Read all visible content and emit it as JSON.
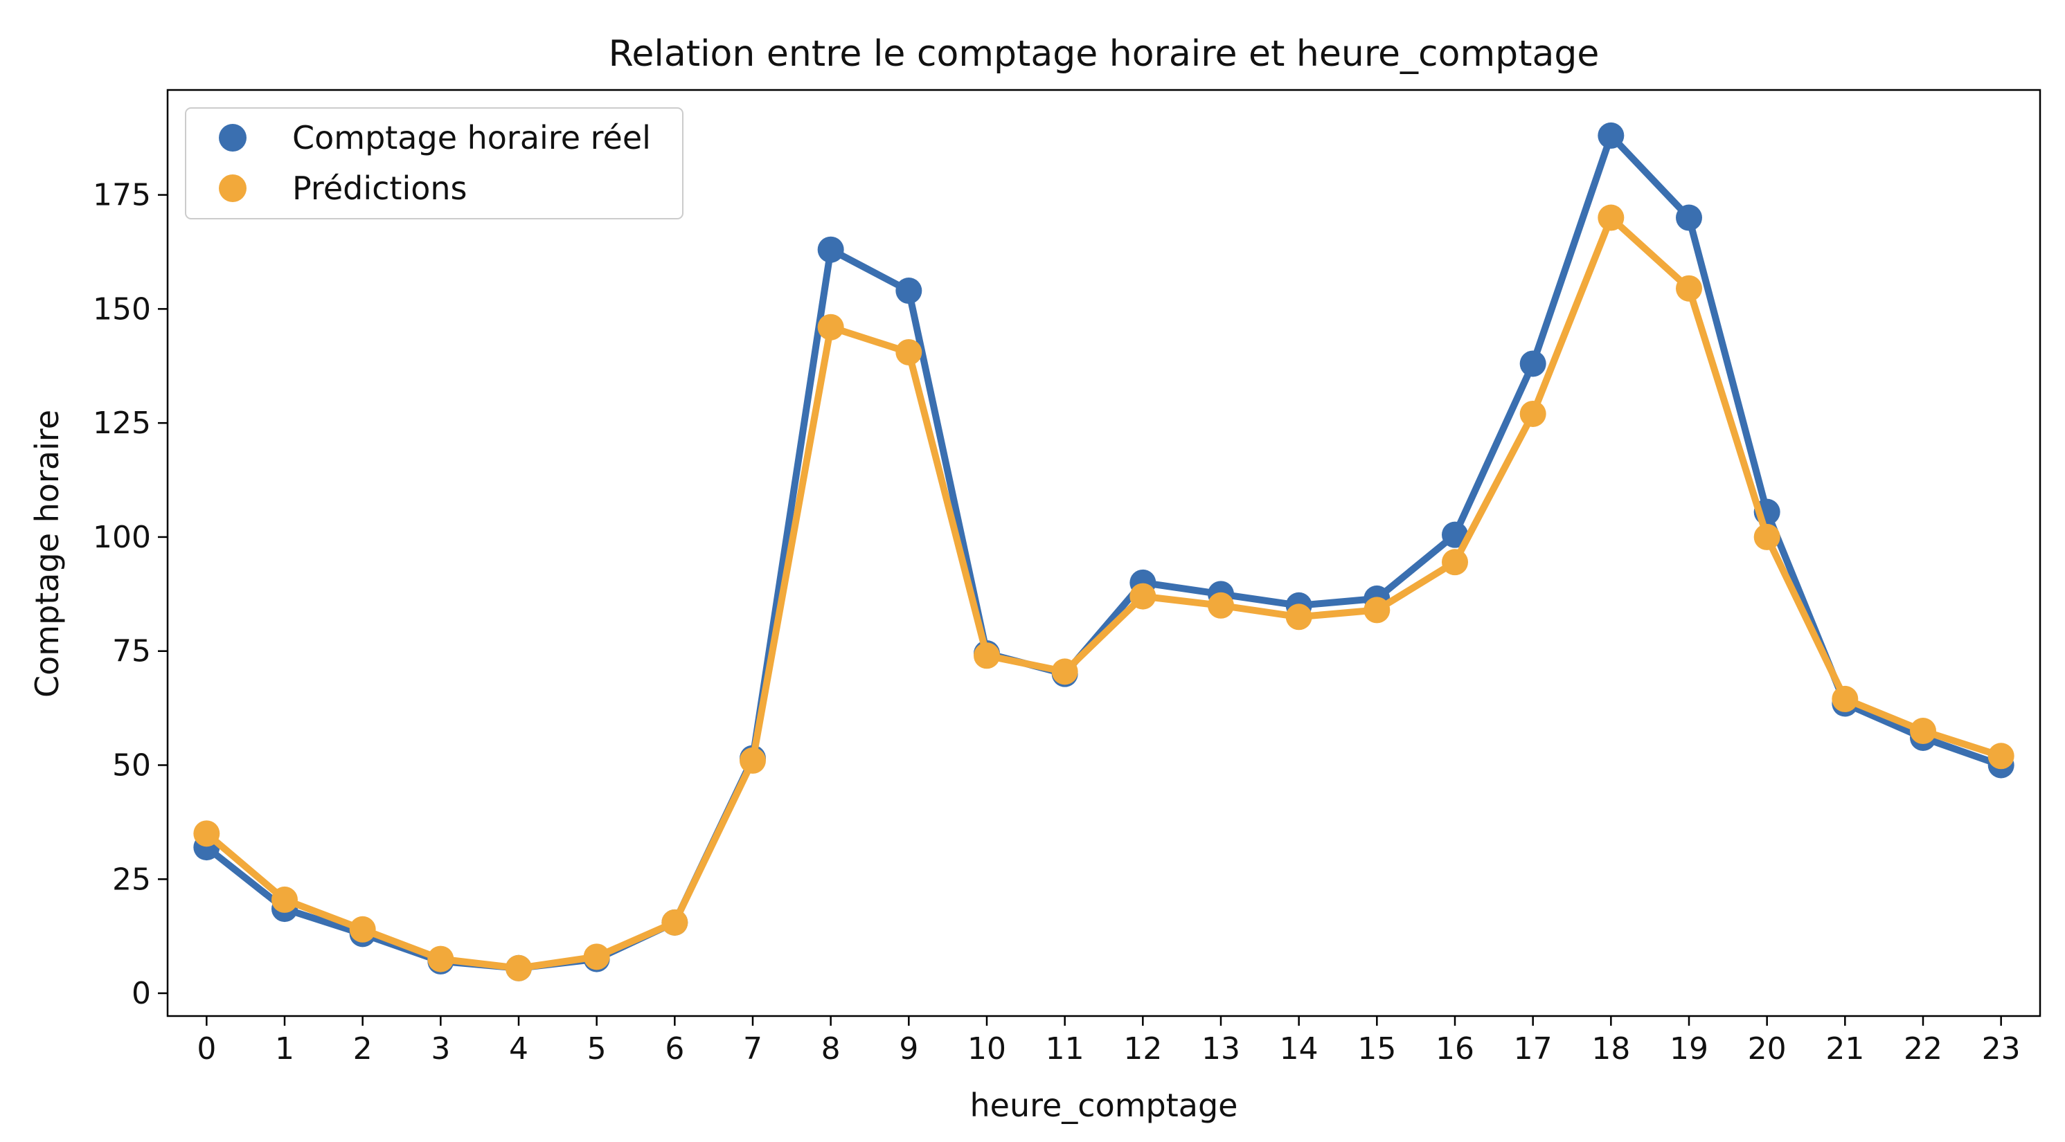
{
  "chart_data": {
    "type": "line",
    "title": "Relation entre le comptage horaire et heure_comptage",
    "xlabel": "heure_comptage",
    "ylabel": "Comptage horaire",
    "categories": [
      "0",
      "1",
      "2",
      "3",
      "4",
      "5",
      "6",
      "7",
      "8",
      "9",
      "10",
      "11",
      "12",
      "13",
      "14",
      "15",
      "16",
      "17",
      "18",
      "19",
      "20",
      "21",
      "22",
      "23"
    ],
    "y_ticks": [
      "0",
      "25",
      "50",
      "75",
      "100",
      "125",
      "150",
      "175"
    ],
    "ylim": [
      -5,
      198
    ],
    "grid": false,
    "legend_position": "top-left",
    "series": [
      {
        "name": "Comptage horaire réel",
        "color": "#3a6fb0",
        "values": [
          32,
          18.5,
          13,
          7,
          5.5,
          7.5,
          15.5,
          51.5,
          163,
          154,
          74.5,
          70,
          90,
          87.5,
          85,
          86.5,
          100.5,
          138,
          188,
          170,
          105.5,
          63.5,
          56,
          50
        ]
      },
      {
        "name": "Prédictions",
        "color": "#f2a93b",
        "values": [
          35,
          20.5,
          14,
          7.5,
          5.5,
          8,
          15.5,
          51,
          146,
          140.5,
          74,
          70.5,
          87,
          85,
          82.5,
          84,
          94.5,
          127,
          170,
          154.5,
          100,
          64.5,
          57.5,
          52
        ]
      }
    ]
  }
}
